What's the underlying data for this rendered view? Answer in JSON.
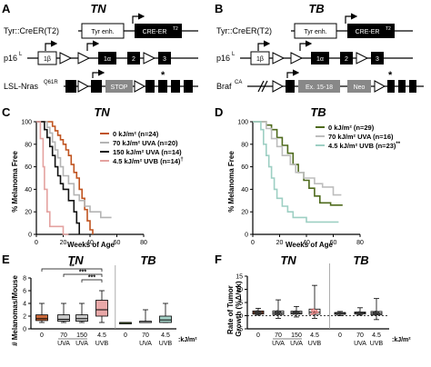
{
  "panelA": {
    "letter": "A",
    "title": "TN",
    "gene1": "Tyr::CreER(T2)",
    "gene1_enh": "Tyr enh.",
    "gene1_cre": "CRE-ER",
    "gene1_cre_sup": "T2",
    "gene2": "p16",
    "gene2_sup": "L",
    "gene2_exons": [
      "1β",
      "1α",
      "2",
      "3"
    ],
    "gene3": "LSL-Nras",
    "gene3_sup": "Q61R",
    "gene3_stop": "STOP",
    "gene3_mark": "*"
  },
  "panelB": {
    "letter": "B",
    "title": "TB",
    "gene1": "Tyr::CreER(T2)",
    "gene1_enh": "Tyr enh.",
    "gene1_cre": "CRE-ER",
    "gene1_cre_sup": "T2",
    "gene2": "p16",
    "gene2_sup": "L",
    "gene2_exons": [
      "1β",
      "1α",
      "2",
      "3"
    ],
    "gene3": "Braf",
    "gene3_sup": "CA",
    "gene3_ex": "Ex. 15-18",
    "gene3_neo": "Neo",
    "gene3_mark": "*"
  },
  "panelC": {
    "letter": "C",
    "title": "TN",
    "chart_data": {
      "type": "line",
      "xlabel": "Weeks of Age",
      "ylabel": "% Melanoma Free",
      "xlim": [
        0,
        80
      ],
      "ylim": [
        0,
        100
      ],
      "xticks": [
        0,
        20,
        40,
        60,
        80
      ],
      "yticks": [
        0,
        20,
        40,
        60,
        80,
        100
      ],
      "legend_position": "top-right",
      "series": [
        {
          "name": "0 kJ/m² (n=24)",
          "color": "#c0531f",
          "points": [
            [
              0,
              100
            ],
            [
              12,
              100
            ],
            [
              12,
              96
            ],
            [
              14,
              96
            ],
            [
              14,
              92
            ],
            [
              16,
              92
            ],
            [
              16,
              88
            ],
            [
              18,
              88
            ],
            [
              18,
              84
            ],
            [
              20,
              84
            ],
            [
              20,
              80
            ],
            [
              22,
              80
            ],
            [
              22,
              75
            ],
            [
              24,
              75
            ],
            [
              24,
              70
            ],
            [
              26,
              70
            ],
            [
              26,
              62
            ],
            [
              28,
              62
            ],
            [
              28,
              55
            ],
            [
              30,
              55
            ],
            [
              30,
              50
            ],
            [
              32,
              50
            ],
            [
              32,
              40
            ],
            [
              34,
              40
            ],
            [
              34,
              32
            ],
            [
              36,
              32
            ],
            [
              36,
              22
            ],
            [
              38,
              22
            ],
            [
              38,
              12
            ],
            [
              40,
              12
            ],
            [
              40,
              4
            ],
            [
              42,
              4
            ],
            [
              42,
              0
            ]
          ]
        },
        {
          "name": "70 kJ/m² UVA (n=20)",
          "color": "#b4b4b4",
          "points": [
            [
              0,
              100
            ],
            [
              8,
              100
            ],
            [
              8,
              95
            ],
            [
              10,
              95
            ],
            [
              10,
              90
            ],
            [
              12,
              90
            ],
            [
              12,
              82
            ],
            [
              14,
              82
            ],
            [
              14,
              75
            ],
            [
              16,
              75
            ],
            [
              16,
              68
            ],
            [
              18,
              68
            ],
            [
              18,
              60
            ],
            [
              20,
              60
            ],
            [
              20,
              52
            ],
            [
              24,
              52
            ],
            [
              24,
              45
            ],
            [
              28,
              45
            ],
            [
              28,
              35
            ],
            [
              32,
              35
            ],
            [
              32,
              30
            ],
            [
              36,
              30
            ],
            [
              36,
              25
            ],
            [
              40,
              25
            ],
            [
              40,
              20
            ],
            [
              48,
              20
            ],
            [
              48,
              15
            ],
            [
              56,
              15
            ]
          ]
        },
        {
          "name": "150 kJ/m² UVA (n=14)",
          "color": "#111111",
          "points": [
            [
              0,
              100
            ],
            [
              6,
              100
            ],
            [
              6,
              93
            ],
            [
              8,
              93
            ],
            [
              8,
              86
            ],
            [
              10,
              86
            ],
            [
              10,
              78
            ],
            [
              12,
              78
            ],
            [
              12,
              70
            ],
            [
              14,
              70
            ],
            [
              14,
              60
            ],
            [
              16,
              60
            ],
            [
              16,
              52
            ],
            [
              18,
              52
            ],
            [
              18,
              45
            ],
            [
              20,
              45
            ],
            [
              20,
              40
            ],
            [
              24,
              40
            ],
            [
              24,
              30
            ],
            [
              28,
              30
            ],
            [
              28,
              20
            ],
            [
              30,
              20
            ],
            [
              30,
              10
            ],
            [
              32,
              10
            ],
            [
              32,
              0
            ]
          ]
        },
        {
          "name": "4.5 kJ/m² UVB (n=14)",
          "color": "#e4a2a0",
          "points": [
            [
              0,
              100
            ],
            [
              3,
              100
            ],
            [
              3,
              85
            ],
            [
              5,
              85
            ],
            [
              5,
              60
            ],
            [
              6,
              60
            ],
            [
              6,
              40
            ],
            [
              8,
              40
            ],
            [
              8,
              20
            ],
            [
              10,
              20
            ],
            [
              10,
              7
            ],
            [
              20,
              7
            ],
            [
              20,
              0
            ],
            [
              24,
              0
            ]
          ]
        }
      ],
      "legend_mark": "†"
    }
  },
  "panelD": {
    "letter": "D",
    "title": "TB",
    "chart_data": {
      "type": "line",
      "xlabel": "Weeks of Age",
      "ylabel": "% Melanoma Free",
      "xlim": [
        0,
        80
      ],
      "ylim": [
        0,
        100
      ],
      "xticks": [
        0,
        20,
        40,
        60,
        80
      ],
      "yticks": [
        0,
        20,
        40,
        60,
        80,
        100
      ],
      "legend_position": "top-right",
      "series": [
        {
          "name": "0 kJ/m² (n=29)",
          "color": "#4e6a1c",
          "points": [
            [
              0,
              100
            ],
            [
              10,
              100
            ],
            [
              10,
              97
            ],
            [
              14,
              97
            ],
            [
              14,
              93
            ],
            [
              18,
              93
            ],
            [
              18,
              86
            ],
            [
              22,
              86
            ],
            [
              22,
              79
            ],
            [
              26,
              79
            ],
            [
              26,
              72
            ],
            [
              30,
              72
            ],
            [
              30,
              62
            ],
            [
              34,
              62
            ],
            [
              34,
              55
            ],
            [
              38,
              55
            ],
            [
              38,
              48
            ],
            [
              42,
              48
            ],
            [
              42,
              41
            ],
            [
              46,
              41
            ],
            [
              46,
              34
            ],
            [
              50,
              34
            ],
            [
              50,
              28
            ],
            [
              58,
              28
            ],
            [
              58,
              26
            ],
            [
              67,
              26
            ]
          ]
        },
        {
          "name": "70 kJ/m² UVA (n=16)",
          "color": "#bdbdbd",
          "points": [
            [
              0,
              100
            ],
            [
              10,
              100
            ],
            [
              10,
              94
            ],
            [
              14,
              94
            ],
            [
              14,
              85
            ],
            [
              18,
              85
            ],
            [
              18,
              78
            ],
            [
              22,
              78
            ],
            [
              22,
              70
            ],
            [
              28,
              70
            ],
            [
              28,
              62
            ],
            [
              32,
              62
            ],
            [
              32,
              55
            ],
            [
              38,
              55
            ],
            [
              38,
              50
            ],
            [
              46,
              50
            ],
            [
              46,
              45
            ],
            [
              52,
              45
            ],
            [
              52,
              42
            ],
            [
              60,
              42
            ],
            [
              60,
              35
            ],
            [
              66,
              35
            ]
          ]
        },
        {
          "name": "4.5 kJ/m² UVB (n=23)",
          "color": "#9dcfc3",
          "points": [
            [
              0,
              100
            ],
            [
              6,
              100
            ],
            [
              6,
              93
            ],
            [
              8,
              93
            ],
            [
              8,
              80
            ],
            [
              10,
              80
            ],
            [
              10,
              70
            ],
            [
              12,
              70
            ],
            [
              12,
              60
            ],
            [
              14,
              60
            ],
            [
              14,
              50
            ],
            [
              16,
              50
            ],
            [
              16,
              40
            ],
            [
              18,
              40
            ],
            [
              18,
              32
            ],
            [
              22,
              32
            ],
            [
              22,
              25
            ],
            [
              26,
              25
            ],
            [
              26,
              20
            ],
            [
              30,
              20
            ],
            [
              30,
              15
            ],
            [
              40,
              15
            ],
            [
              40,
              11
            ],
            [
              64,
              11
            ]
          ]
        }
      ],
      "legend_mark": "**"
    }
  },
  "panelE": {
    "letter": "E",
    "group1": "TN",
    "group2": "TB",
    "unit": ":kJ/m²",
    "chart_data": {
      "type": "box",
      "ylabel": "# Melanomas/Mouse",
      "ylim": [
        0,
        8
      ],
      "yticks": [
        0,
        2,
        4,
        6,
        8
      ],
      "doses": [
        "0",
        "70",
        "150",
        "4.5",
        "0",
        "70",
        "4.5"
      ],
      "sources": [
        "UVA",
        "UVA",
        "UVB",
        "UVA",
        "UVB"
      ],
      "boxes": [
        {
          "group": "TN",
          "dose": "0",
          "min": 1,
          "q1": 1.3,
          "median": 1.6,
          "q3": 2.2,
          "max": 4,
          "color": "#c8683a"
        },
        {
          "group": "TN",
          "dose": "70",
          "min": 1,
          "q1": 1.2,
          "median": 1.5,
          "q3": 2.2,
          "max": 4,
          "color": "#c8c8c8"
        },
        {
          "group": "TN",
          "dose": "150",
          "min": 1,
          "q1": 1.2,
          "median": 1.6,
          "q3": 2.2,
          "max": 4,
          "color": "#c8c8c8"
        },
        {
          "group": "TN",
          "dose": "4.5",
          "min": 1,
          "q1": 2.0,
          "median": 3.0,
          "q3": 4.5,
          "max": 6,
          "color": "#e9a8a8"
        },
        {
          "group": "TB",
          "dose": "0",
          "min": 1,
          "q1": 1,
          "median": 1,
          "q3": 1,
          "max": 1,
          "color": "#4e6a1c"
        },
        {
          "group": "TB",
          "dose": "70",
          "min": 1,
          "q1": 1,
          "median": 1,
          "q3": 1.2,
          "max": 3,
          "color": "#d8d8d8"
        },
        {
          "group": "TB",
          "dose": "4.5",
          "min": 1,
          "q1": 1,
          "median": 1.4,
          "q3": 2.0,
          "max": 4,
          "color": "#a6d3c8"
        }
      ],
      "significance": [
        "**",
        "***",
        "***"
      ]
    }
  },
  "panelF": {
    "letter": "F",
    "group1": "TN",
    "group2": "TB",
    "unit": ":kJ/m²",
    "chart_data": {
      "type": "box",
      "ylabel": "Rate of Tumor Growth (%Δ/wk)",
      "ylim": [
        -5,
        15
      ],
      "yticks": [
        -5,
        0,
        5,
        10,
        15
      ],
      "doses": [
        "0",
        "70",
        "150",
        "4.5",
        "0",
        "70",
        "4.5"
      ],
      "sources": [
        "UVA",
        "UVA",
        "UVB",
        "UVA",
        "UVB"
      ],
      "boxes": [
        {
          "group": "TN",
          "dose": "0",
          "min": 0.2,
          "q1": 0.6,
          "median": 1.2,
          "q3": 1.8,
          "max": 2.8,
          "color": "#c8683a"
        },
        {
          "group": "TN",
          "dose": "70",
          "min": -1,
          "q1": 0.4,
          "median": 1.0,
          "q3": 1.8,
          "max": 6,
          "color": "#ffffff"
        },
        {
          "group": "TN",
          "dose": "150",
          "min": -0.5,
          "q1": 0.6,
          "median": 1.1,
          "q3": 1.7,
          "max": 3.5,
          "color": "#ffffff"
        },
        {
          "group": "TN",
          "dose": "4.5",
          "min": -1,
          "q1": 0.5,
          "median": 1.3,
          "q3": 2.5,
          "max": 11.5,
          "color": "#ffffff"
        },
        {
          "group": "TB",
          "dose": "0",
          "min": 0,
          "q1": 0.5,
          "median": 0.9,
          "q3": 1.2,
          "max": 1.6,
          "color": "#ffffff"
        },
        {
          "group": "TB",
          "dose": "70",
          "min": 0.2,
          "q1": 0.6,
          "median": 1.0,
          "q3": 1.4,
          "max": 3,
          "color": "#ffffff"
        },
        {
          "group": "TB",
          "dose": "4.5",
          "min": -1.5,
          "q1": 0.3,
          "median": 0.9,
          "q3": 1.6,
          "max": 6.5,
          "color": "#ffffff"
        }
      ]
    }
  }
}
